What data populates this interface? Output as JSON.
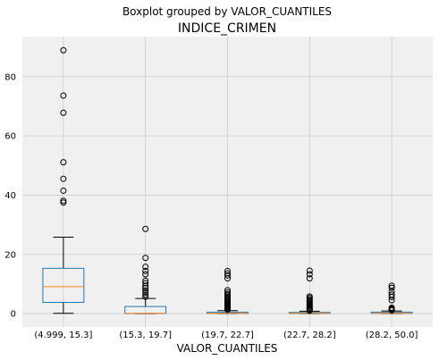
{
  "chart_data": {
    "type": "boxplot",
    "suptitle": "Boxplot grouped by VALOR_CUANTILES",
    "title": "INDICE_CRIMEN",
    "xlabel": "VALOR_CUANTILES",
    "ylabel": "",
    "ylim": [
      -4.5,
      93.5
    ],
    "yticks": [
      0,
      20,
      40,
      60,
      80
    ],
    "grid": true,
    "categories": [
      "(4.999, 15.3]",
      "(15.3, 19.7]",
      "(19.7, 22.7]",
      "(22.7, 28.2]",
      "(28.2, 50.0]"
    ],
    "boxes": [
      {
        "whislo": 0.1,
        "q1": 3.8,
        "med": 9.1,
        "q3": 15.3,
        "whishi": 25.8,
        "fliers": [
          37.5,
          38.1,
          41.5,
          45.5,
          51.1,
          67.8,
          73.6,
          88.9
        ]
      },
      {
        "whislo": 0.0,
        "q1": 0.05,
        "med": 0.1,
        "q3": 2.4,
        "whishi": 5.1,
        "fliers": [
          5.7,
          6.4,
          7.1,
          7.8,
          8.6,
          9.3,
          10.3,
          11.1,
          13.3,
          14.4,
          15.8,
          18.8,
          28.6
        ]
      },
      {
        "whislo": 0.0,
        "q1": 0.05,
        "med": 0.1,
        "q3": 0.5,
        "whishi": 1.0,
        "fliers": [
          1.3,
          1.6,
          1.9,
          2.2,
          2.5,
          2.8,
          3.1,
          3.4,
          3.7,
          4.0,
          4.4,
          4.8,
          5.2,
          5.6,
          6.1,
          6.6,
          7.2,
          7.9,
          11.9,
          12.9,
          13.6,
          14.4
        ]
      },
      {
        "whislo": 0.0,
        "q1": 0.05,
        "med": 0.1,
        "q3": 0.4,
        "whishi": 0.8,
        "fliers": [
          1.0,
          1.3,
          1.6,
          2.0,
          2.4,
          2.8,
          3.2,
          3.6,
          4.0,
          4.4,
          4.8,
          5.3,
          5.8,
          11.9,
          13.3,
          14.5
        ]
      },
      {
        "whislo": 0.0,
        "q1": 0.05,
        "med": 0.1,
        "q3": 0.5,
        "whishi": 0.9,
        "fliers": [
          1.1,
          1.4,
          1.7,
          2.0,
          4.5,
          5.6,
          6.4,
          7.4,
          8.7,
          9.4
        ]
      }
    ],
    "colors": {
      "box": "#1f77b4",
      "median": "#ff7f0e",
      "whisker": "#000000",
      "flier": "#000000",
      "plot_background": "#f0f0f0",
      "grid": "#cbcbcb"
    }
  }
}
